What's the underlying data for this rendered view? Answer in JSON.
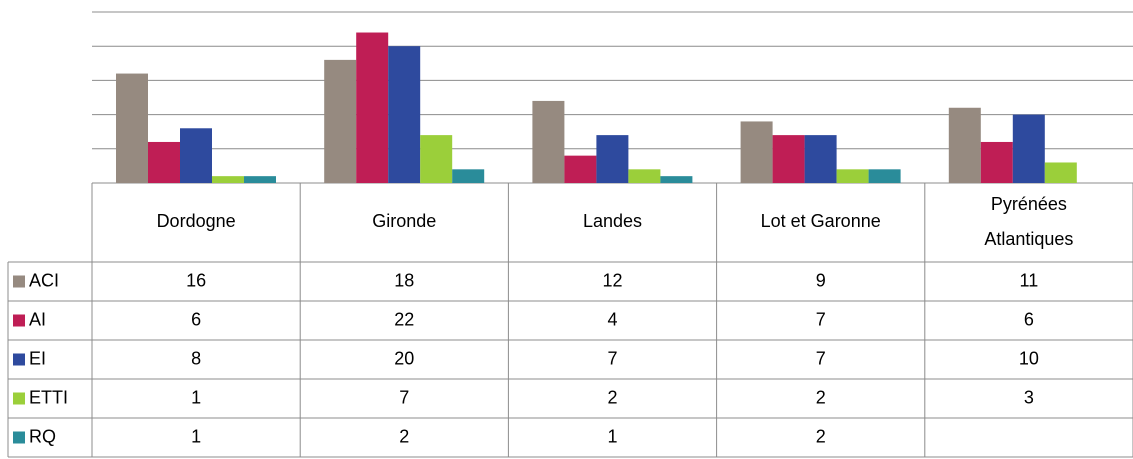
{
  "chart_data": {
    "type": "bar",
    "categories": [
      "Dordogne",
      "Gironde",
      "Landes",
      "Lot et Garonne",
      "Pyrénées Atlantiques"
    ],
    "series": [
      {
        "name": "ACI",
        "color": "#968a80",
        "values": [
          16,
          18,
          12,
          9,
          11
        ]
      },
      {
        "name": "AI",
        "color": "#bf1e55",
        "values": [
          6,
          22,
          4,
          7,
          6
        ]
      },
      {
        "name": "EI",
        "color": "#2e4a9e",
        "values": [
          8,
          20,
          7,
          7,
          10
        ]
      },
      {
        "name": "ETTI",
        "color": "#9bcf3a",
        "values": [
          1,
          7,
          2,
          2,
          3
        ]
      },
      {
        "name": "RQ",
        "color": "#2a8c9a",
        "values": [
          1,
          2,
          1,
          2,
          null
        ]
      }
    ],
    "ylim": [
      0,
      25
    ],
    "yticks": [
      0,
      5,
      10,
      15,
      20,
      25
    ],
    "grid": true
  }
}
